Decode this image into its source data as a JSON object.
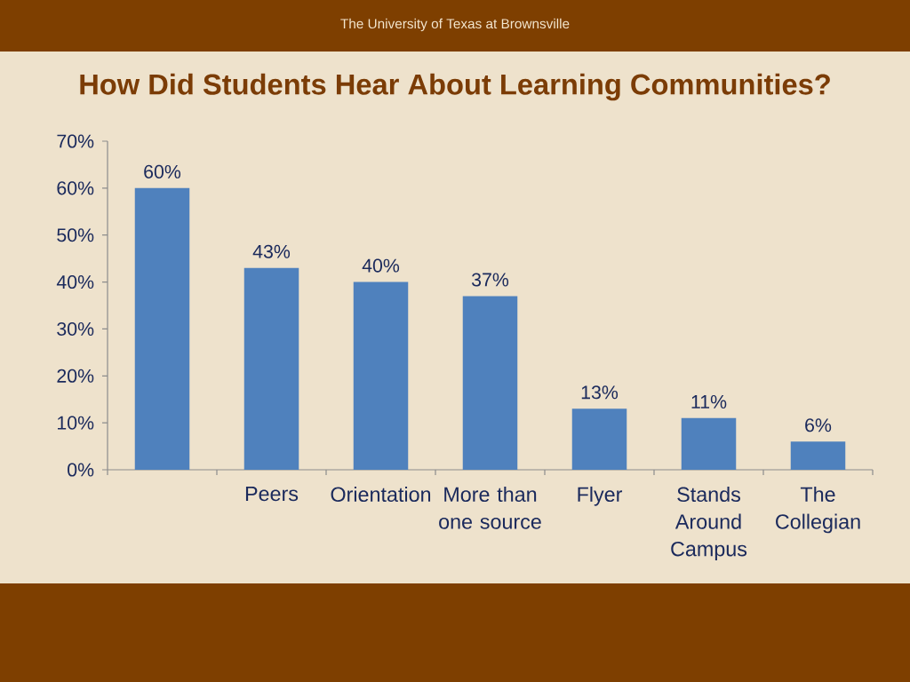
{
  "chart_data": {
    "type": "bar",
    "title": "How Did Students Hear About Learning Communities?",
    "annotations": [
      "The University of Texas at Brownsville"
    ],
    "categories": [
      null,
      "Peers",
      "Orientation",
      "More than one source",
      "Flyer",
      "Stands Around Campus",
      "The Collegian"
    ],
    "values": [
      60,
      43,
      40,
      37,
      13,
      11,
      6
    ],
    "value_labels": [
      "60%",
      "43%",
      "40%",
      "37%",
      "13%",
      "11%",
      "6%"
    ],
    "color": "#4f81bd",
    "ylim": [
      0,
      70
    ],
    "yticks": [
      {
        "value": 0,
        "label": "0%"
      },
      {
        "value": 10,
        "label": "10%"
      },
      {
        "value": 20,
        "label": "20%"
      },
      {
        "value": 30,
        "label": "30%"
      },
      {
        "value": 40,
        "label": "40%"
      },
      {
        "value": 50,
        "label": "50%"
      },
      {
        "value": 60,
        "label": "60%"
      },
      {
        "value": 70,
        "label": "70%"
      }
    ]
  }
}
